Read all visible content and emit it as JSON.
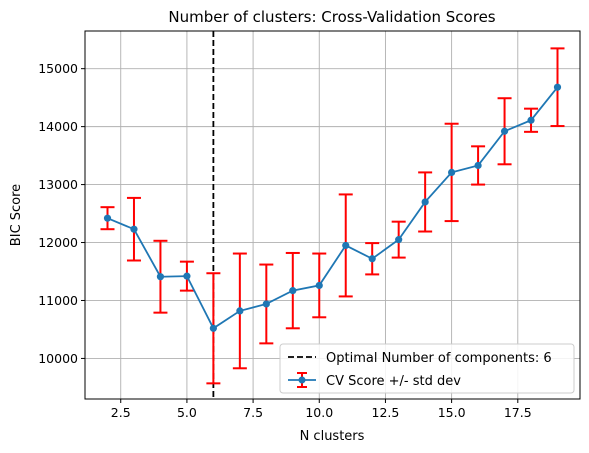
{
  "chart_data": {
    "type": "line",
    "title": "Number of clusters: Cross-Validation Scores",
    "xlabel": "N clusters",
    "ylabel": "BIC Score",
    "xlim": [
      1.15,
      19.85
    ],
    "ylim": [
      9300,
      15650
    ],
    "xticks": [
      2.5,
      5.0,
      7.5,
      10.0,
      12.5,
      15.0,
      17.5
    ],
    "xtick_labels": [
      "2.5",
      "5.0",
      "7.5",
      "10.0",
      "12.5",
      "15.0",
      "17.5"
    ],
    "yticks": [
      10000,
      11000,
      12000,
      13000,
      14000,
      15000
    ],
    "ytick_labels": [
      "10000",
      "11000",
      "12000",
      "13000",
      "14000",
      "15000"
    ],
    "grid": true,
    "legend_position": "bottom-right",
    "series": [
      {
        "name": "CV Score +/- std dev",
        "color": "#1f77b4",
        "errorbar_color": "#ff0000",
        "x": [
          2,
          3,
          4,
          5,
          6,
          7,
          8,
          9,
          10,
          11,
          12,
          13,
          14,
          15,
          16,
          17,
          18,
          19
        ],
        "y": [
          12420,
          12230,
          11410,
          11420,
          10520,
          10820,
          10940,
          11170,
          11260,
          11950,
          11720,
          12050,
          12700,
          13210,
          13330,
          13920,
          14110,
          14680
        ],
        "err": [
          190,
          540,
          620,
          250,
          950,
          990,
          680,
          650,
          550,
          880,
          270,
          310,
          510,
          840,
          330,
          570,
          200,
          670
        ]
      }
    ],
    "vline": {
      "x": 6,
      "label": "Optimal Number of components: 6",
      "color": "#000000",
      "style": "dashed"
    }
  }
}
